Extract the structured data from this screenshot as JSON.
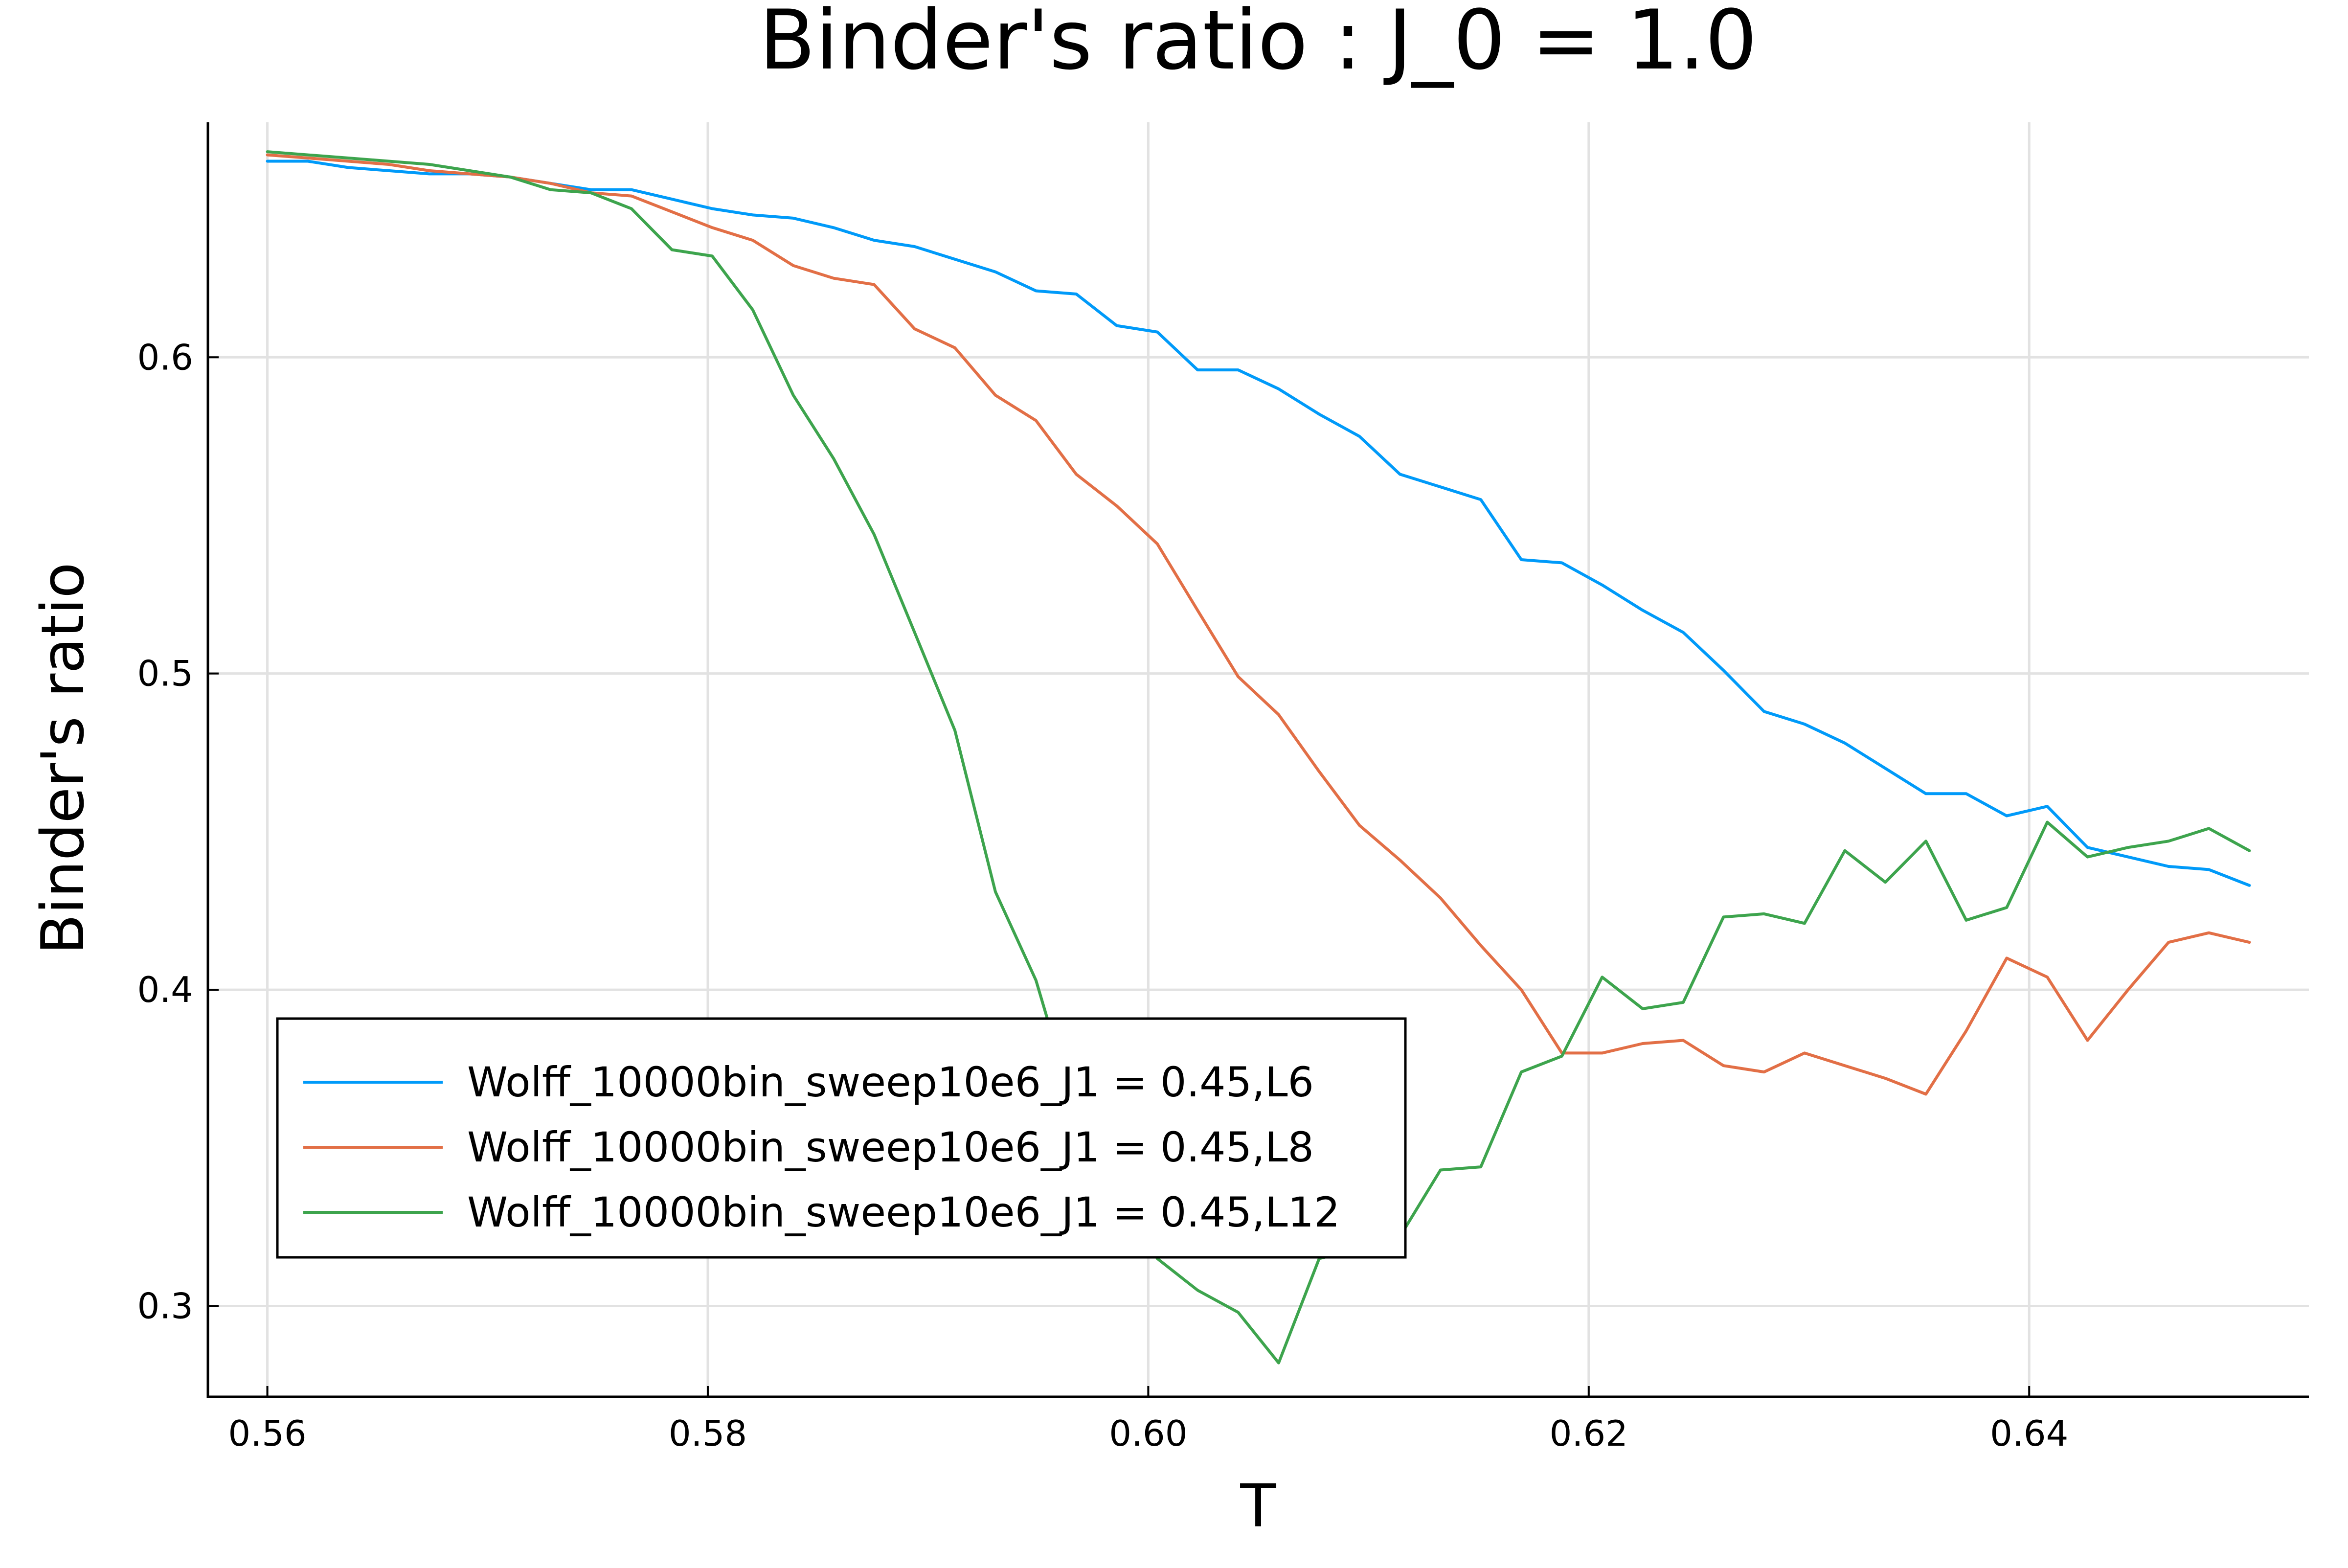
{
  "chart_data": {
    "type": "line",
    "title": "Binder's ratio : J_0 = 1.0",
    "xlabel": "T",
    "ylabel": "Binder's ratio",
    "xlim": [
      0.5573,
      0.6527
    ],
    "ylim": [
      0.2713,
      0.6743
    ],
    "xticks": [
      0.56,
      0.58,
      0.6,
      0.62,
      0.64
    ],
    "xtick_labels": [
      "0.56",
      "0.58",
      "0.60",
      "0.62",
      "0.64"
    ],
    "yticks": [
      0.3,
      0.4,
      0.5,
      0.6
    ],
    "ytick_labels": [
      "0.3",
      "0.4",
      "0.5",
      "0.6"
    ],
    "grid": true,
    "legend_position": "bottom-left",
    "x": [
      0.56,
      0.56184,
      0.56367,
      0.56551,
      0.56735,
      0.56918,
      0.57102,
      0.57286,
      0.57469,
      0.57653,
      0.57837,
      0.5802,
      0.58204,
      0.58388,
      0.58571,
      0.58755,
      0.58939,
      0.59122,
      0.59306,
      0.5949,
      0.59673,
      0.59857,
      0.60041,
      0.60224,
      0.60408,
      0.60592,
      0.60776,
      0.60959,
      0.61143,
      0.61327,
      0.6151,
      0.61694,
      0.61878,
      0.62061,
      0.62245,
      0.62429,
      0.62612,
      0.62796,
      0.6298,
      0.63163,
      0.63347,
      0.63531,
      0.63714,
      0.63898,
      0.64082,
      0.64265,
      0.64449,
      0.64633,
      0.64816,
      0.65
    ],
    "series": [
      {
        "name": "Wolff_10000bin_sweep10e6_J1 = 0.45,L6",
        "color": "#009af9",
        "values": [
          0.662,
          0.662,
          0.66,
          0.659,
          0.658,
          0.658,
          0.657,
          0.655,
          0.653,
          0.653,
          0.65,
          0.647,
          0.645,
          0.644,
          0.641,
          0.637,
          0.635,
          0.631,
          0.627,
          0.621,
          0.62,
          0.61,
          0.608,
          0.596,
          0.596,
          0.59,
          0.582,
          0.575,
          0.563,
          0.559,
          0.555,
          0.536,
          0.535,
          0.528,
          0.52,
          0.513,
          0.501,
          0.488,
          0.484,
          0.478,
          0.47,
          0.462,
          0.462,
          0.455,
          0.458,
          0.445,
          0.442,
          0.439,
          0.438,
          0.433
        ]
      },
      {
        "name": "Wolff_10000bin_sweep10e6_J1 = 0.45,L8",
        "color": "#e26f46",
        "values": [
          0.664,
          0.663,
          0.662,
          0.661,
          0.659,
          0.658,
          0.657,
          0.655,
          0.652,
          0.651,
          0.646,
          0.641,
          0.637,
          0.629,
          0.625,
          0.623,
          0.609,
          0.603,
          0.588,
          0.58,
          0.563,
          0.553,
          0.541,
          0.52,
          0.499,
          0.487,
          0.469,
          0.452,
          0.441,
          0.429,
          0.414,
          0.4,
          0.38,
          0.38,
          0.383,
          0.384,
          0.376,
          0.374,
          0.38,
          0.376,
          0.372,
          0.367,
          0.387,
          0.41,
          0.404,
          0.384,
          0.4,
          0.415,
          0.418,
          0.415
        ]
      },
      {
        "name": "Wolff_10000bin_sweep10e6_J1 = 0.45,L12",
        "color": "#3da44d",
        "values": [
          0.665,
          0.664,
          0.663,
          0.662,
          0.661,
          0.659,
          0.657,
          0.653,
          0.652,
          0.647,
          0.634,
          0.632,
          0.615,
          0.588,
          0.568,
          0.544,
          0.513,
          0.482,
          0.431,
          0.403,
          0.36,
          0.34,
          0.315,
          0.305,
          0.298,
          0.282,
          0.315,
          0.318,
          0.322,
          0.343,
          0.344,
          0.374,
          0.379,
          0.404,
          0.394,
          0.396,
          0.423,
          0.424,
          0.421,
          0.444,
          0.434,
          0.447,
          0.422,
          0.426,
          0.453,
          0.442,
          0.445,
          0.447,
          0.451,
          0.444
        ]
      }
    ]
  }
}
